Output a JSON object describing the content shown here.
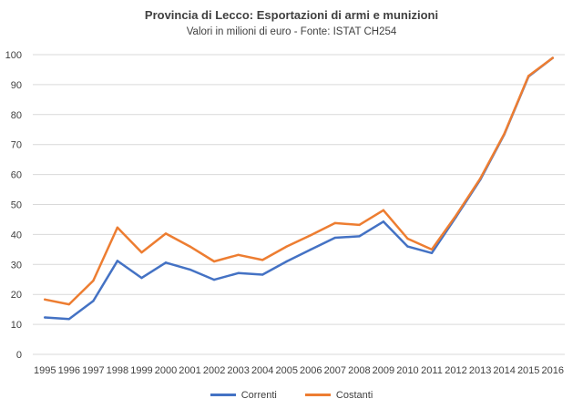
{
  "colors": {
    "correnti": "#4472C4",
    "costanti": "#ED7D31",
    "grid": "#d9d9d9"
  },
  "chart_data": {
    "type": "line",
    "title": "Provincia di Lecco: Esportazioni di armi e munizioni",
    "subtitle": "Valori in milioni di euro - Fonte: ISTAT CH254",
    "xlabel": "",
    "ylabel": "",
    "ylim": [
      0,
      100
    ],
    "yticks": [
      0,
      10,
      20,
      30,
      40,
      50,
      60,
      70,
      80,
      90,
      100
    ],
    "grid": true,
    "legend": "bottom",
    "categories": [
      "1995",
      "1996",
      "1997",
      "1998",
      "1999",
      "2000",
      "2001",
      "2002",
      "2003",
      "2004",
      "2005",
      "2006",
      "2007",
      "2008",
      "2009",
      "2010",
      "2011",
      "2012",
      "2013",
      "2014",
      "2015",
      "2016"
    ],
    "series": [
      {
        "name": "Correnti",
        "color": "#4472C4",
        "values": [
          12.3,
          11.8,
          17.8,
          31.2,
          25.5,
          30.6,
          28.3,
          24.9,
          27.1,
          26.6,
          31.0,
          35.0,
          38.9,
          39.4,
          44.3,
          36.0,
          33.8,
          45.8,
          58.2,
          73.4,
          92.7,
          98.9
        ]
      },
      {
        "name": "Costanti",
        "color": "#ED7D31",
        "values": [
          18.3,
          16.7,
          24.6,
          42.3,
          34.0,
          40.3,
          36.0,
          31.0,
          33.2,
          31.5,
          36.0,
          39.8,
          43.8,
          43.2,
          48.1,
          38.6,
          35.0,
          46.3,
          58.6,
          73.6,
          92.9,
          98.9
        ]
      }
    ]
  }
}
